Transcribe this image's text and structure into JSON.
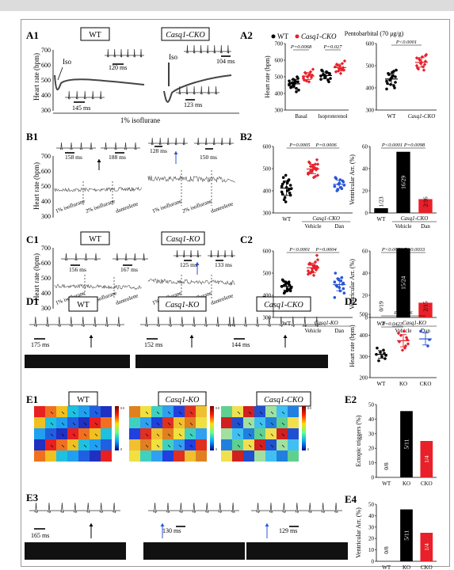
{
  "panels": {
    "A1": {
      "label": "A1",
      "box_left": "WT",
      "box_right": "Casq1-CKO",
      "iso": "Iso",
      "iso2": "Iso",
      "ms1": "120 ms",
      "ms2": "145 ms",
      "ms3": "104 ms",
      "ms4": "123 ms",
      "footer": "1% isoflurane",
      "ylabel": "Heart rate (bpm)",
      "yticks": [
        "700",
        "600",
        "500",
        "400",
        "300"
      ]
    },
    "A2": {
      "label": "A2",
      "legend_wt": "WT",
      "legend_cko": "Casq1-CKO"
    },
    "A2b": {
      "title": "Pentobarbital (70 μg/g)"
    },
    "B1": {
      "label": "B1",
      "ms1": "158 ms",
      "ms2": "188 ms",
      "ms3": "128 ms",
      "ms4": "150 ms",
      "c1": "1% isoflurane",
      "c2": "2% isoflurane",
      "c3": "dantrolene",
      "c4": "1% isoflurane",
      "c5": "2% isoflurane",
      "c6": "dantrolene",
      "ylabel": "Heart rate (bpm)",
      "yticks": [
        "700",
        "600",
        "500",
        "400",
        "300"
      ]
    },
    "B2": {
      "label": "B2",
      "group": "Casq1-CKO",
      "sub1": "Vehicle",
      "sub2": "Dan"
    },
    "B2b": {
      "group": "Casq1-CKO",
      "sub1": "Vehicle",
      "sub2": "Dan"
    },
    "C1": {
      "label": "C1",
      "box_left": "WT",
      "box_right": "Casq1-KO",
      "ms1": "156 ms",
      "ms2": "167 ms",
      "ms3": "125 ms",
      "ms4": "133 ms",
      "c1": "1% isoflurane",
      "c2": "2% isoflurane",
      "c3": "dantrolene",
      "c4": "1% isoflurane",
      "c5": "2% isoflurane",
      "c6": "dantrolene",
      "ylabel": "Heart rate (bpm)",
      "yticks": [
        "700",
        "600",
        "500",
        "400",
        "300"
      ]
    },
    "C2": {
      "label": "C2",
      "group": "Casq1-KO",
      "sub1": "Vehicle",
      "sub2": "Dan"
    },
    "C2b": {
      "group": "Casq1-KO",
      "sub1": "Vehicle",
      "sub2": "Dan"
    },
    "D1": {
      "label": "D1",
      "box1": "WT",
      "box2": "Casq1-KO",
      "box3": "Casq1-CKO",
      "ms1": "175 ms",
      "ms2": "152 ms",
      "ms3": "144 ms"
    },
    "D2": {
      "label": "D2"
    },
    "E1": {
      "label": "E1",
      "box1": "WT",
      "box2": "Casq1-KO",
      "box3": "Casq1-CKO",
      "cmax": "0.0",
      "cmin": "0"
    },
    "E2": {
      "label": "E2"
    },
    "E3": {
      "label": "E3",
      "ms1": "165 ms",
      "ms2": "130 ms",
      "ms3": "129 ms"
    },
    "E4": {
      "label": "E4"
    }
  },
  "colors": {
    "red": "#e8202a",
    "black": "#000000",
    "grey": "#777777",
    "blue": "#2855d8"
  },
  "chart_data": [
    {
      "id": "A2",
      "type": "scatter",
      "ylabel": "Heart rate (bpm)",
      "ylim": [
        300,
        700
      ],
      "yticks": [
        300,
        400,
        500,
        600,
        700
      ],
      "categories": [
        "Basal",
        "Isoproterenol"
      ],
      "series": [
        {
          "name": "WT",
          "color": "#000000",
          "groups": [
            [
              450,
              470,
              430,
              480,
              455,
              440,
              460,
              420,
              500,
              470,
              445,
              465,
              435,
              475,
              490,
              410,
              460,
              485
            ],
            [
              505,
              520,
              480,
              530,
              495,
              515,
              540,
              490,
              470,
              525,
              500,
              510,
              535,
              485,
              515
            ]
          ]
        },
        {
          "name": "Casq1-CKO",
          "color": "#e8202a",
          "groups": [
            [
              490,
              510,
              530,
              470,
              500,
              520,
              480,
              545,
              495,
              515,
              505,
              475,
              525,
              500
            ],
            [
              560,
              540,
              580,
              520,
              550,
              570,
              530,
              595,
              555,
              545,
              565,
              535,
              575
            ]
          ]
        }
      ],
      "pvalues": [
        "P=0.0068",
        "P=0.027"
      ]
    },
    {
      "id": "A2b",
      "type": "scatter",
      "title": "Pentobarbital (70 μg/g)",
      "ylim": [
        300,
        600
      ],
      "yticks": [
        300,
        400,
        500,
        600
      ],
      "categories": [
        "WT",
        "Casq1-CKO"
      ],
      "groups": [
        [
          430,
          450,
          410,
          470,
          440,
          460,
          420,
          480,
          400,
          455,
          445,
          435,
          465,
          395,
          425,
          475,
          450,
          415
        ],
        [
          500,
          520,
          480,
          540,
          510,
          530,
          490,
          550,
          505,
          495,
          515,
          525,
          485,
          535,
          545
        ]
      ],
      "colors": [
        "#000000",
        "#e8202a"
      ],
      "pvalues": [
        "P<0.0001"
      ]
    },
    {
      "id": "B2",
      "type": "scatter",
      "ylim": [
        300,
        600
      ],
      "yticks": [
        300,
        400,
        500,
        600
      ],
      "categories": [
        "WT",
        "Vehicle",
        "Dan"
      ],
      "groups": [
        [
          420,
          380,
          450,
          400,
          470,
          360,
          430,
          410,
          390,
          445,
          415,
          370,
          460,
          395,
          425,
          405,
          435,
          350,
          440,
          385
        ],
        [
          480,
          500,
          520,
          460,
          510,
          490,
          530,
          470,
          495,
          505,
          515,
          485,
          525,
          475,
          540,
          465,
          500,
          490,
          510,
          480,
          520,
          495
        ],
        [
          420,
          440,
          410,
          450,
          430,
          400,
          460,
          425,
          445,
          415,
          435,
          405,
          455,
          420
        ]
      ],
      "colors": [
        "#000000",
        "#e8202a",
        "#2855d8"
      ],
      "pvalues": [
        "P=0.0005",
        "P=0.0006"
      ]
    },
    {
      "id": "B2b",
      "type": "bar",
      "ylabel": "Ventricular Arr. (%)",
      "ylim": [
        0,
        60
      ],
      "yticks": [
        0,
        20,
        40,
        60
      ],
      "categories": [
        "WT",
        "Vehicle",
        "Dan"
      ],
      "values": [
        4.3,
        55.2,
        12.5
      ],
      "labels": [
        "1/23",
        "16/29",
        "2/16"
      ],
      "colors": [
        "#000000",
        "#000000",
        "#e8202a"
      ],
      "pvalues": [
        "P<0.0001",
        "P=0.0098"
      ]
    },
    {
      "id": "C2",
      "type": "scatter",
      "ylim": [
        300,
        600
      ],
      "yticks": [
        300,
        400,
        500,
        600
      ],
      "categories": [
        "WT",
        "Vehicle",
        "Dan"
      ],
      "groups": [
        [
          440,
          420,
          460,
          430,
          450,
          410,
          470,
          435,
          445,
          425,
          455,
          415,
          465,
          440,
          430,
          450,
          420,
          460,
          445
        ],
        [
          510,
          530,
          550,
          490,
          520,
          540,
          500,
          560,
          515,
          525,
          535,
          505,
          545,
          495,
          580,
          520,
          530,
          510,
          500,
          540,
          525,
          515,
          535,
          505
        ],
        [
          460,
          430,
          480,
          420,
          470,
          440,
          500,
          410,
          450,
          465,
          435,
          475,
          445,
          390,
          455
        ]
      ],
      "colors": [
        "#000000",
        "#e8202a",
        "#2855d8"
      ],
      "pvalues": [
        "P<0.0001",
        "P=0.0004"
      ]
    },
    {
      "id": "C2b",
      "type": "bar",
      "ylabel": "Ventricular Arr. (%)",
      "ylim": [
        0,
        60
      ],
      "yticks": [
        0,
        20,
        40,
        60
      ],
      "categories": [
        "WT",
        "Vehicle",
        "Dan"
      ],
      "values": [
        0,
        62.5,
        13.3
      ],
      "labels": [
        "0/19",
        "15/24",
        "2/15"
      ],
      "colors": [
        "#000000",
        "#000000",
        "#e8202a"
      ],
      "pvalues": [
        "P<0.0001",
        "P=0.0033"
      ]
    },
    {
      "id": "D2",
      "type": "scatter",
      "ylabel": "Heart rate (bpm)",
      "ylim": [
        200,
        500
      ],
      "yticks": [
        200,
        300,
        400,
        500
      ],
      "categories": [
        "WT",
        "KO",
        "CKO"
      ],
      "groups": [
        [
          310,
          290,
          330,
          300,
          320,
          280,
          340,
          305,
          315
        ],
        [
          410,
          380,
          350,
          420,
          330,
          400,
          370,
          360,
          390,
          340
        ],
        [
          420,
          380,
          350
        ]
      ],
      "colors": [
        "#000000",
        "#e8202a",
        "#2855d8"
      ],
      "pvalues": [
        "P=0.0423",
        "P=0.066"
      ]
    },
    {
      "id": "E2",
      "type": "bar",
      "ylabel": "Ectopic triggers (%)",
      "ylim": [
        0,
        50
      ],
      "yticks": [
        0,
        10,
        20,
        30,
        40,
        50
      ],
      "categories": [
        "WT",
        "KO",
        "CKO"
      ],
      "values": [
        0,
        45.5,
        25
      ],
      "labels": [
        "0/8",
        "5/11",
        "1/4"
      ],
      "colors": [
        "#000000",
        "#000000",
        "#e8202a"
      ]
    },
    {
      "id": "E4",
      "type": "bar",
      "ylabel": "Ventricular Arr. (%)",
      "ylim": [
        0,
        50
      ],
      "yticks": [
        0,
        10,
        20,
        30,
        40,
        50
      ],
      "categories": [
        "WT",
        "KO",
        "CKO"
      ],
      "values": [
        0,
        45.5,
        25
      ],
      "labels": [
        "0/8",
        "5/11",
        "1/4"
      ],
      "colors": [
        "#000000",
        "#000000",
        "#e8202a"
      ]
    }
  ]
}
